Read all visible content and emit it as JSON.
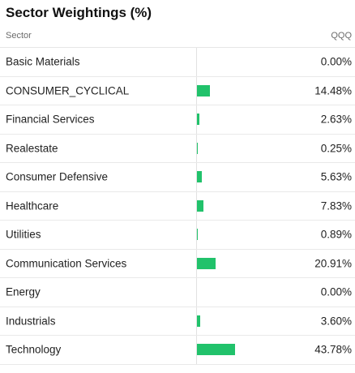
{
  "title": "Sector Weightings (%)",
  "columns": {
    "sector": "Sector",
    "fund": "QQQ"
  },
  "colors": {
    "bar": "#21c26b"
  },
  "sectors": [
    {
      "label": "Basic Materials",
      "value": "0.00%",
      "weight": 0.0
    },
    {
      "label": "CONSUMER_CYCLICAL",
      "value": "14.48%",
      "weight": 14.48
    },
    {
      "label": "Financial Services",
      "value": "2.63%",
      "weight": 2.63
    },
    {
      "label": "Realestate",
      "value": "0.25%",
      "weight": 0.25
    },
    {
      "label": "Consumer Defensive",
      "value": "5.63%",
      "weight": 5.63
    },
    {
      "label": "Healthcare",
      "value": "7.83%",
      "weight": 7.83
    },
    {
      "label": "Utilities",
      "value": "0.89%",
      "weight": 0.89
    },
    {
      "label": "Communication Services",
      "value": "20.91%",
      "weight": 20.91
    },
    {
      "label": "Energy",
      "value": "0.00%",
      "weight": 0.0
    },
    {
      "label": "Industrials",
      "value": "3.60%",
      "weight": 3.6
    },
    {
      "label": "Technology",
      "value": "43.78%",
      "weight": 43.78
    }
  ]
}
